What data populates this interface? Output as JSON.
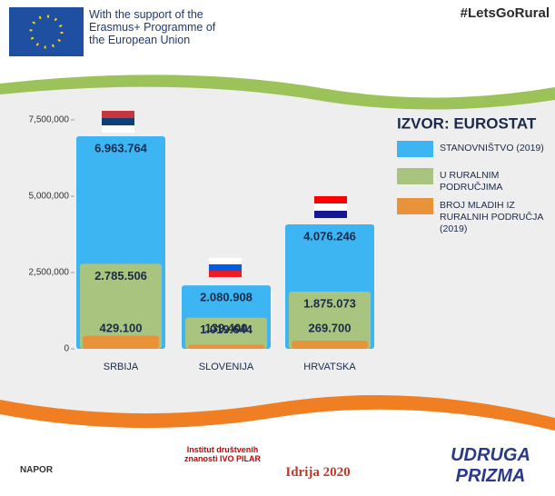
{
  "header": {
    "support_text": "With the support of the Erasmus+ Programme of the European Union",
    "hashtag": "#LetsGoRural"
  },
  "chart_data": {
    "type": "bar",
    "title": "IZVOR: EUROSTAT",
    "categories": [
      "SRBIJA",
      "SLOVENIJA",
      "HRVATSKA"
    ],
    "series": [
      {
        "name": "STANOVNIŠTVO (2019)",
        "color": "#3cb5f2",
        "values": [
          6963764,
          2080908,
          4076246
        ],
        "value_labels": [
          "6.963.764",
          "2.080.908",
          "4.076.246"
        ]
      },
      {
        "name": "U RURALNIM PODRUČJIMA",
        "color": "#a9c47f",
        "values": [
          2785506,
          1019644,
          1875073
        ],
        "value_labels": [
          "2.785.506",
          "1.019.644",
          "1.875.073"
        ]
      },
      {
        "name": "BROJ MLADIH IZ RURALNIH PODRUČJA (2019)",
        "color": "#e8923a",
        "values": [
          429100,
          139400,
          269700
        ],
        "value_labels": [
          "429.100",
          "139.400",
          "269.700"
        ]
      }
    ],
    "ylim": [
      0,
      7500000
    ],
    "yticks": [
      0,
      {
        "value": 2500000,
        "label": "2,500,000"
      },
      {
        "value": 5000000,
        "label": "5,000,000"
      },
      {
        "value": 7500000,
        "label": "7,500,000"
      }
    ],
    "legend": "right"
  },
  "footer": {
    "logos": [
      "NAPOR",
      "Institut društvenih znanosti IVO PILAR",
      "Idrija 2020",
      "UDRUGA PRIZMA"
    ]
  }
}
